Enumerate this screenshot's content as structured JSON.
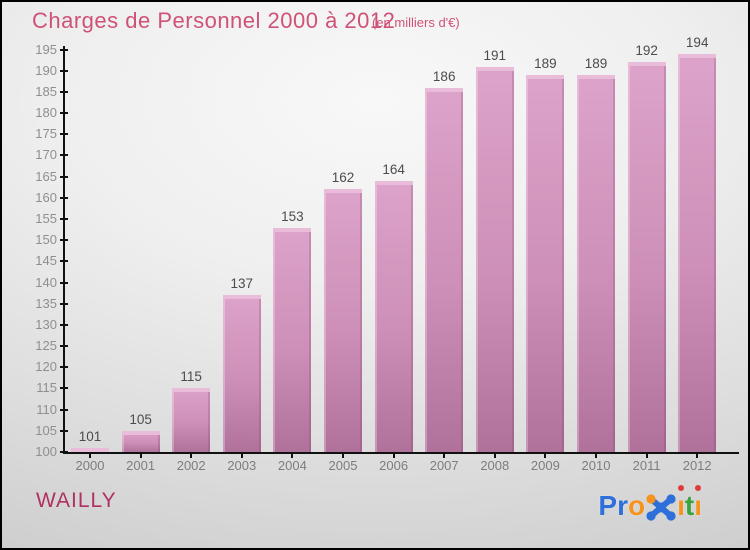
{
  "header": {
    "title": "Charges de Personnel 2000 à 2012",
    "subtitle": "(en milliers d'€)"
  },
  "footer": {
    "location": "WAILLY",
    "logo_name": "Proxiti"
  },
  "chart_data": {
    "type": "bar",
    "title": "Charges de Personnel 2000 à 2012",
    "subtitle": "(en milliers d'€)",
    "categories": [
      "2000",
      "2001",
      "2002",
      "2003",
      "2004",
      "2005",
      "2006",
      "2007",
      "2008",
      "2009",
      "2010",
      "2011",
      "2012"
    ],
    "values": [
      101,
      105,
      115,
      137,
      153,
      162,
      164,
      186,
      191,
      189,
      189,
      192,
      194
    ],
    "xlabel": "",
    "ylabel": "",
    "ylim": [
      100,
      195
    ],
    "ytick_step": 5,
    "grid": false,
    "legend": false,
    "value_labels_shown": true,
    "colors": {
      "title": "#cf5276",
      "bar_top": "#dda3ca",
      "bar_bottom": "#b0719a",
      "bar_cap": "#e9bcd9",
      "axis": "#111111",
      "y_tick_label": "#8f8f8f",
      "x_tick_label": "#7d7d7d",
      "value_label": "#4c4c4c",
      "location_label": "#b13062"
    }
  },
  "logo": {
    "segments": [
      {
        "text": "Pr",
        "color": "#2e6fd9"
      },
      {
        "text": "o",
        "color": "#f6921e"
      },
      {
        "icon": "x-molecule",
        "color": "#2e6fd9",
        "accent": "#f6921e"
      },
      {
        "text": "i",
        "color": "#f6921e",
        "dot": "#e23b3b"
      },
      {
        "text": "t",
        "color": "#3aa33f"
      },
      {
        "text": "i",
        "color": "#f6921e",
        "dot": "#e23b3b"
      }
    ]
  }
}
